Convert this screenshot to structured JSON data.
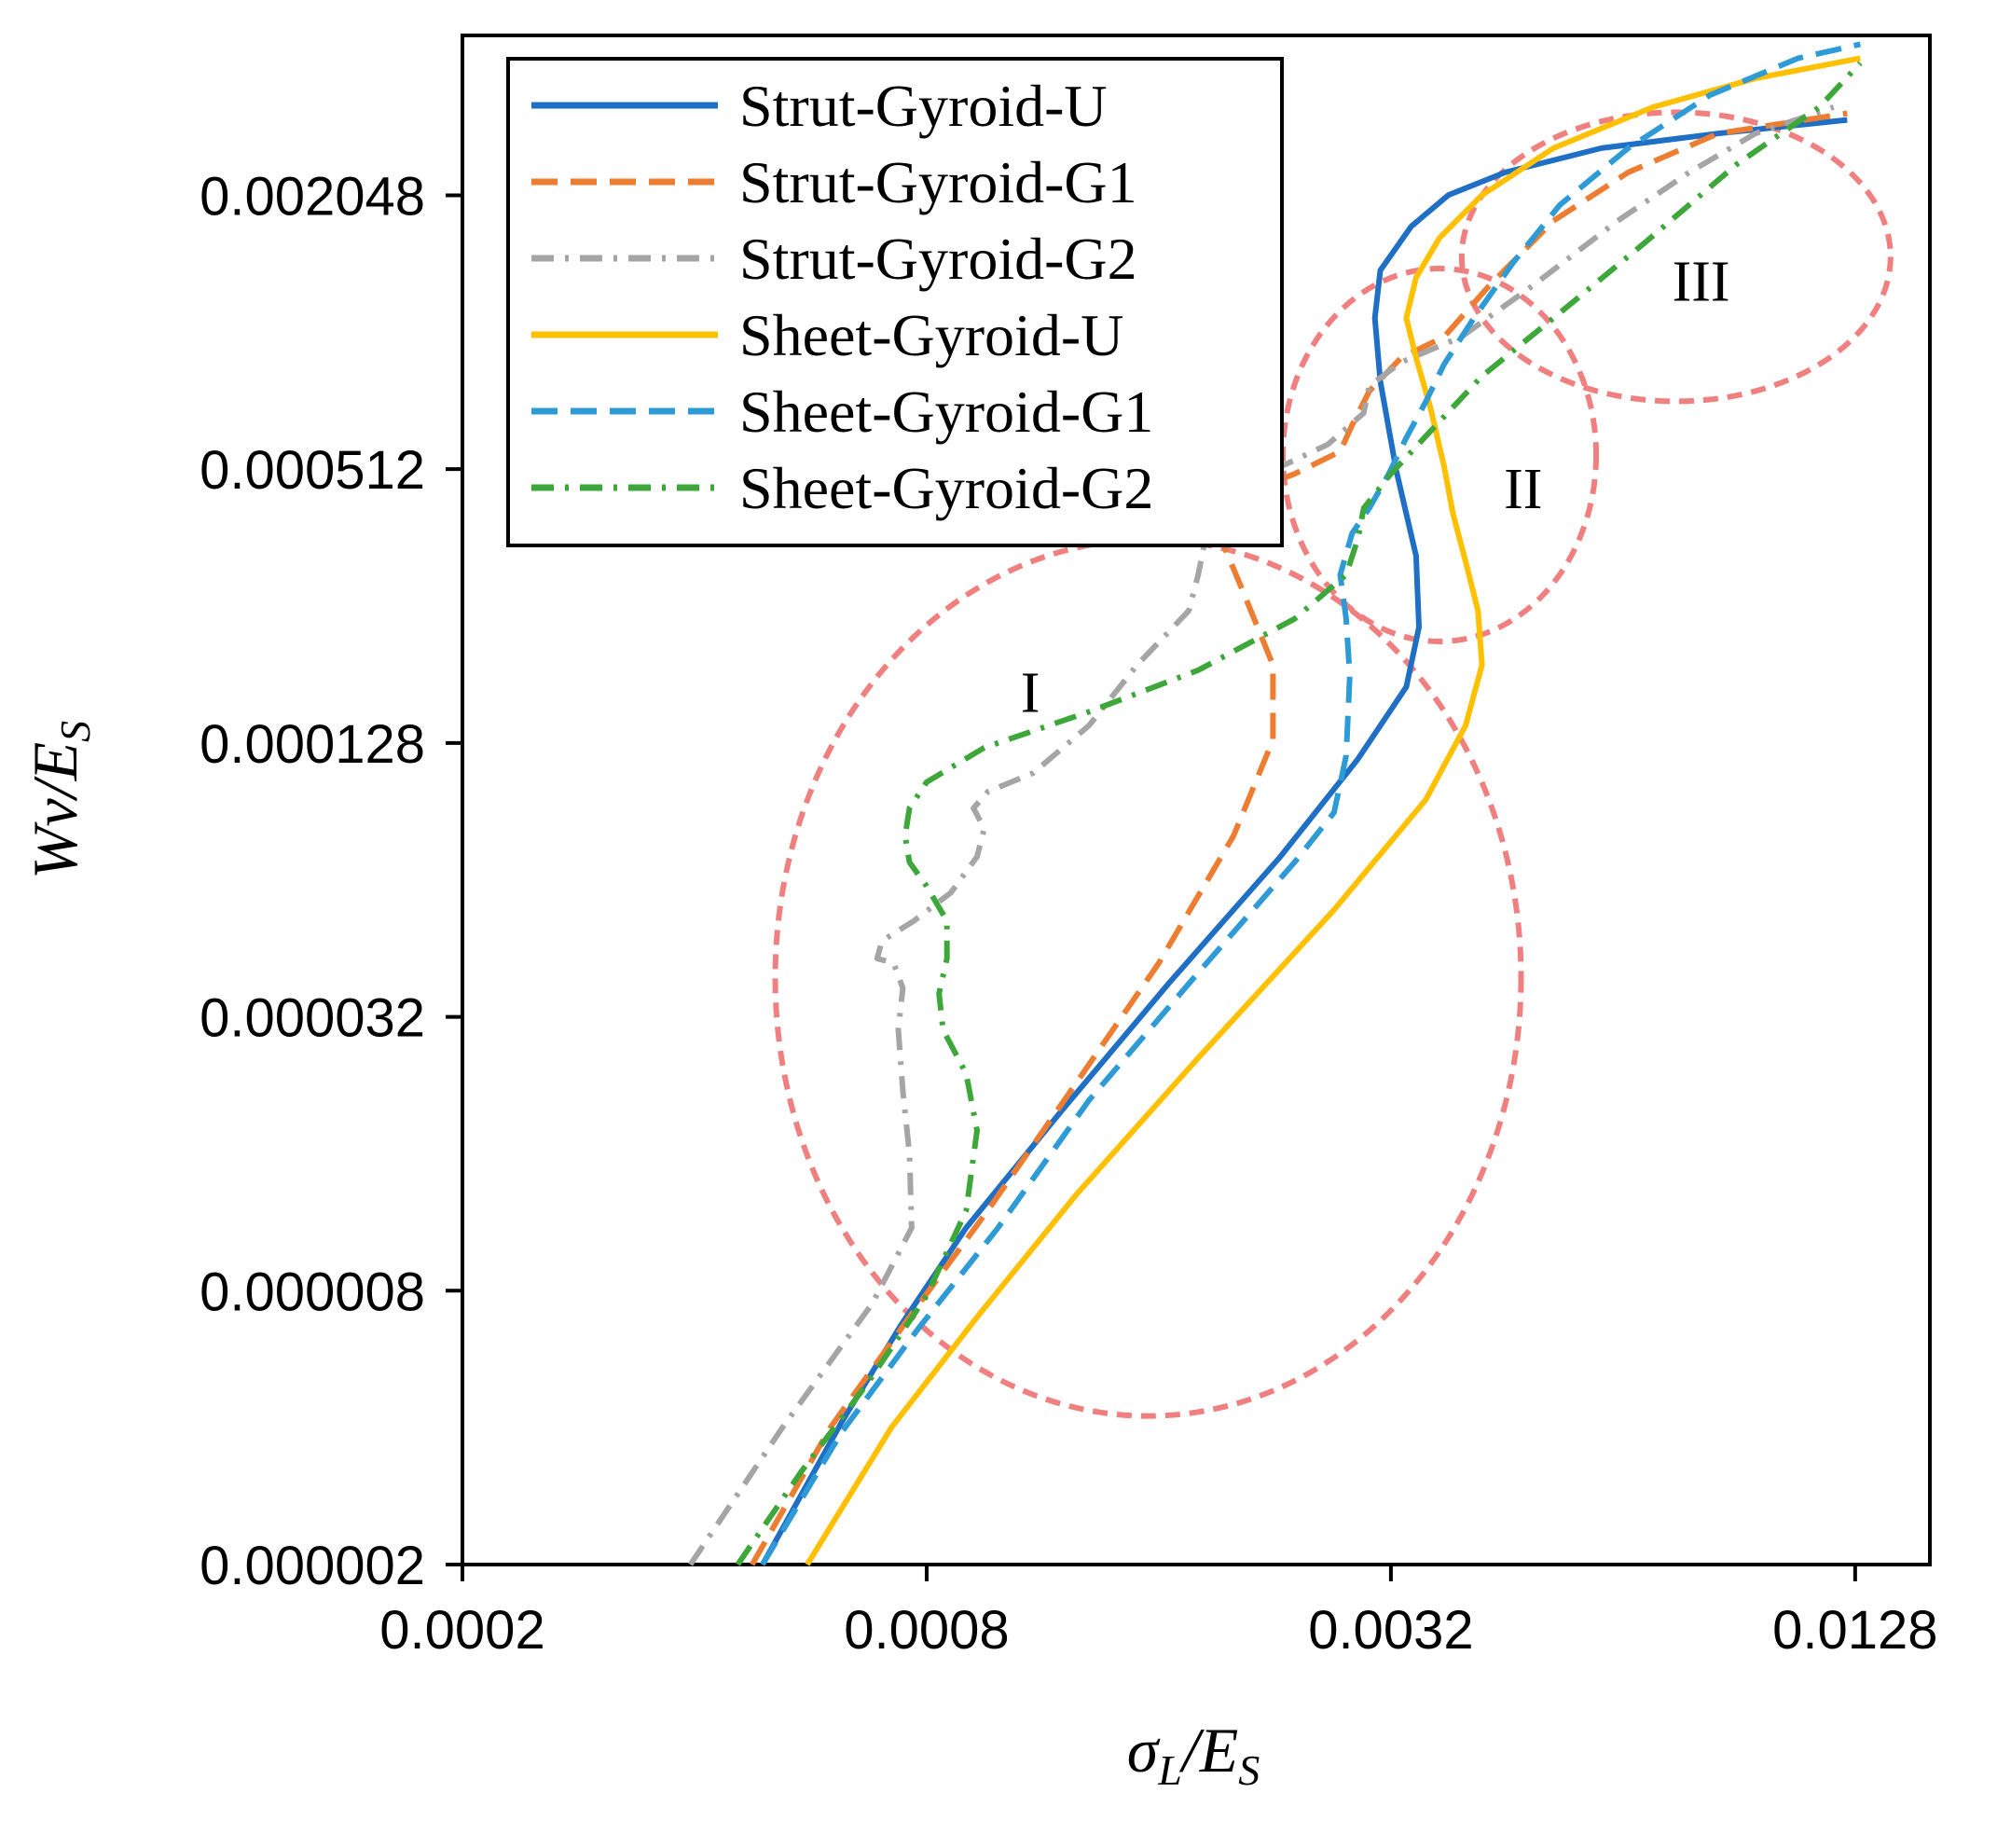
{
  "chart_data": {
    "type": "line",
    "title": "",
    "xlabel": {
      "main": "σ",
      "sub": "L",
      "slash": "/",
      "main2": "E",
      "sub2": "S"
    },
    "ylabel": {
      "main": "Wv",
      "slash": "/",
      "main2": "E",
      "sub2": "S"
    },
    "x_scale": "log2",
    "y_scale": "log2",
    "xlim": [
      0.0002,
      0.016
    ],
    "ylim": [
      2e-06,
      0.0046
    ],
    "x_ticks": [
      0.0002,
      0.0008,
      0.0032,
      0.0128
    ],
    "x_tick_labels": [
      "0.0002",
      "0.0008",
      "0.0032",
      "0.0128"
    ],
    "y_ticks": [
      2e-06,
      8e-06,
      3.2e-05,
      0.000128,
      0.000512,
      0.002048
    ],
    "y_tick_labels": [
      "0.000002",
      "0.000008",
      "0.000032",
      "0.000128",
      "0.000512",
      "0.002048"
    ],
    "legend_position": "top-left",
    "series": [
      {
        "name": "Strut-Gyroid-U",
        "color": "#1F6FC5",
        "dash": "solid",
        "points": [
          [
            0.00049,
            2e-06
          ],
          [
            0.00062,
            4.1e-06
          ],
          [
            0.00074,
            6.7e-06
          ],
          [
            0.0009,
            1.1e-05
          ],
          [
            0.0012,
            2e-05
          ],
          [
            0.00165,
            3.8e-05
          ],
          [
            0.0023,
            7.2e-05
          ],
          [
            0.0029,
            0.000118
          ],
          [
            0.00335,
            0.00017
          ],
          [
            0.00348,
            0.00023
          ],
          [
            0.00345,
            0.00033
          ],
          [
            0.00325,
            0.00051
          ],
          [
            0.0031,
            0.0008
          ],
          [
            0.00305,
            0.0011
          ],
          [
            0.0031,
            0.0014
          ],
          [
            0.0034,
            0.00175
          ],
          [
            0.0038,
            0.00205
          ],
          [
            0.0045,
            0.0023
          ],
          [
            0.006,
            0.0026
          ],
          [
            0.0085,
            0.0028
          ],
          [
            0.0125,
            0.003
          ]
        ]
      },
      {
        "name": "Strut-Gyroid-G1",
        "color": "#ED7D31",
        "dash": "dashed",
        "points": [
          [
            0.000475,
            2e-06
          ],
          [
            0.0006,
            4e-06
          ],
          [
            0.00076,
            7e-06
          ],
          [
            0.00096,
            1.2e-05
          ],
          [
            0.00123,
            2.2e-05
          ],
          [
            0.0016,
            4.2e-05
          ],
          [
            0.002,
            8e-05
          ],
          [
            0.00225,
            0.00013
          ],
          [
            0.00225,
            0.00019
          ],
          [
            0.00205,
            0.00028
          ],
          [
            0.0019,
            0.00038
          ],
          [
            0.0019,
            0.00044
          ],
          [
            0.00205,
            0.00045
          ],
          [
            0.0024,
            0.0005
          ],
          [
            0.00275,
            0.00056
          ],
          [
            0.00285,
            0.00064
          ],
          [
            0.003,
            0.00076
          ],
          [
            0.0033,
            0.0009
          ],
          [
            0.00375,
            0.001
          ],
          [
            0.0043,
            0.0013
          ],
          [
            0.0052,
            0.0018
          ],
          [
            0.0065,
            0.0023
          ],
          [
            0.0085,
            0.0028
          ],
          [
            0.0125,
            0.0031
          ]
        ]
      },
      {
        "name": "Strut-Gyroid-G2",
        "color": "#A5A5A5",
        "dash": "dashdot",
        "points": [
          [
            0.000395,
            2e-06
          ],
          [
            0.00052,
            4e-06
          ],
          [
            0.00068,
            7.5e-06
          ],
          [
            0.000765,
            1.1e-05
          ],
          [
            0.00076,
            1.6e-05
          ],
          [
            0.000745,
            2.2e-05
          ],
          [
            0.000735,
            3e-05
          ],
          [
            0.000745,
            3.7e-05
          ],
          [
            0.000725,
            4.2e-05
          ],
          [
            0.00069,
            4.3e-05
          ],
          [
            0.0007,
            4.7e-05
          ],
          [
            0.00077,
            5.2e-05
          ],
          [
            0.00086,
            6e-05
          ],
          [
            0.00093,
            7.2e-05
          ],
          [
            0.00095,
            8.3e-05
          ],
          [
            0.00092,
            9.2e-05
          ],
          [
            0.00096,
            0.0001
          ],
          [
            0.0011,
            0.00011
          ],
          [
            0.0013,
            0.00014
          ],
          [
            0.0015,
            0.00019
          ],
          [
            0.00175,
            0.00025
          ],
          [
            0.0018,
            0.0003
          ],
          [
            0.00185,
            0.00038
          ],
          [
            0.00195,
            0.00044
          ],
          [
            0.0022,
            0.0005
          ],
          [
            0.00265,
            0.00058
          ],
          [
            0.00295,
            0.00068
          ],
          [
            0.003,
            0.00078
          ],
          [
            0.0033,
            0.00088
          ],
          [
            0.00395,
            0.001
          ],
          [
            0.0049,
            0.0013
          ],
          [
            0.0063,
            0.0018
          ],
          [
            0.0078,
            0.0023
          ],
          [
            0.0095,
            0.0028
          ],
          [
            0.012,
            0.0032
          ]
        ]
      },
      {
        "name": "Sheet-Gyroid-U",
        "color": "#FFC000",
        "dash": "solid",
        "points": [
          [
            0.00056,
            2e-06
          ],
          [
            0.00072,
            4e-06
          ],
          [
            0.00093,
            7e-06
          ],
          [
            0.00125,
            1.3e-05
          ],
          [
            0.0018,
            2.6e-05
          ],
          [
            0.0027,
            5.5e-05
          ],
          [
            0.00355,
            9.6e-05
          ],
          [
            0.004,
            0.00014
          ],
          [
            0.0042,
            0.00019
          ],
          [
            0.00415,
            0.00025
          ],
          [
            0.004,
            0.00032
          ],
          [
            0.00385,
            0.00041
          ],
          [
            0.00375,
            0.00052
          ],
          [
            0.0036,
            0.0007
          ],
          [
            0.00345,
            0.0009
          ],
          [
            0.00335,
            0.0011
          ],
          [
            0.00345,
            0.00135
          ],
          [
            0.0037,
            0.00165
          ],
          [
            0.0042,
            0.00205
          ],
          [
            0.0052,
            0.0026
          ],
          [
            0.007,
            0.0032
          ],
          [
            0.0095,
            0.0037
          ],
          [
            0.013,
            0.0041
          ]
        ]
      },
      {
        "name": "Sheet-Gyroid-G1",
        "color": "#2E9BD6",
        "dash": "dashed",
        "points": [
          [
            0.00049,
            2e-06
          ],
          [
            0.00062,
            3.9e-06
          ],
          [
            0.00078,
            6.6e-06
          ],
          [
            0.00099,
            1.1e-05
          ],
          [
            0.0013,
            2.1e-05
          ],
          [
            0.0018,
            4e-05
          ],
          [
            0.0024,
            7e-05
          ],
          [
            0.0027,
            9e-05
          ],
          [
            0.0028,
            0.00012
          ],
          [
            0.00283,
            0.00018
          ],
          [
            0.0028,
            0.00024
          ],
          [
            0.00275,
            0.0003
          ],
          [
            0.00285,
            0.00037
          ],
          [
            0.003,
            0.00042
          ],
          [
            0.00318,
            0.0005
          ],
          [
            0.00335,
            0.0006
          ],
          [
            0.00355,
            0.00072
          ],
          [
            0.00375,
            0.00087
          ],
          [
            0.0041,
            0.0011
          ],
          [
            0.0046,
            0.00145
          ],
          [
            0.0053,
            0.00195
          ],
          [
            0.0065,
            0.0026
          ],
          [
            0.0083,
            0.0034
          ],
          [
            0.0108,
            0.0041
          ],
          [
            0.013,
            0.0044
          ]
        ]
      },
      {
        "name": "Sheet-Gyroid-G2",
        "color": "#3EA73A",
        "dash": "dashdot",
        "points": [
          [
            0.000455,
            2e-06
          ],
          [
            0.00055,
            3.2e-06
          ],
          [
            0.00067,
            5e-06
          ],
          [
            0.0008,
            7.8e-06
          ],
          [
            0.0009,
            1.2e-05
          ],
          [
            0.00093,
            1.8e-05
          ],
          [
            0.0009,
            2.4e-05
          ],
          [
            0.00084,
            3e-05
          ],
          [
            0.00083,
            3.6e-05
          ],
          [
            0.00085,
            4.3e-05
          ],
          [
            0.00085,
            5.2e-05
          ],
          [
            0.0008,
            6.2e-05
          ],
          [
            0.00076,
            7e-05
          ],
          [
            0.00075,
            8e-05
          ],
          [
            0.00076,
            9.2e-05
          ],
          [
            0.0008,
            0.000105
          ],
          [
            0.00095,
            0.000125
          ],
          [
            0.0013,
            0.00015
          ],
          [
            0.0018,
            0.000185
          ],
          [
            0.0024,
            0.00024
          ],
          [
            0.0028,
            0.0003
          ],
          [
            0.0029,
            0.00036
          ],
          [
            0.00295,
            0.00042
          ],
          [
            0.0032,
            0.0005
          ],
          [
            0.0036,
            0.00062
          ],
          [
            0.0042,
            0.00082
          ],
          [
            0.0052,
            0.0011
          ],
          [
            0.0068,
            0.0016
          ],
          [
            0.009,
            0.0024
          ],
          [
            0.0115,
            0.0032
          ],
          [
            0.013,
            0.004
          ]
        ]
      }
    ],
    "annotations": [
      {
        "label": "I",
        "type": "dashed-ellipse",
        "cx": 0.00155,
        "cy": 3.9e-05,
        "x_label": 0.00109,
        "y_label": 0.00015
      },
      {
        "label": "II",
        "type": "dashed-ellipse",
        "cx": 0.0037,
        "cy": 0.00055,
        "x_label": 0.00475,
        "y_label": 0.00042
      },
      {
        "label": "III",
        "type": "dashed-ellipse",
        "cx": 0.0075,
        "cy": 0.0015,
        "x_label": 0.00808,
        "y_label": 0.0012
      }
    ]
  }
}
